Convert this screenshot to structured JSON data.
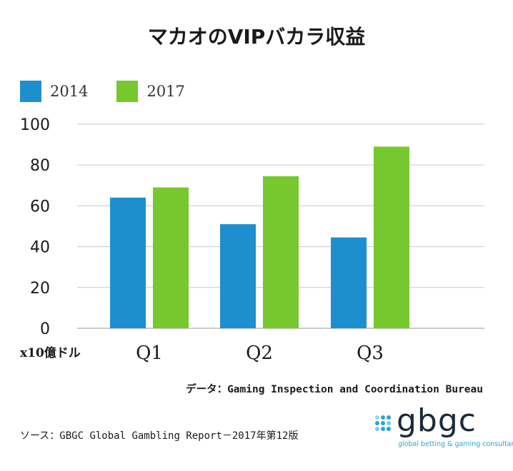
{
  "chart_data": {
    "type": "bar",
    "title": "マカオのVIPバカラ収益",
    "ylabel": "x10億ドル",
    "xlabel": "",
    "categories": [
      "Q1",
      "Q2",
      "Q3"
    ],
    "ylim": [
      0,
      100
    ],
    "yticks": [
      0,
      20,
      40,
      60,
      80,
      100
    ],
    "grid": true,
    "legend_position": "top-left",
    "series": [
      {
        "name": "2014",
        "color": "#1e8fce",
        "values": [
          64,
          51,
          44.5
        ]
      },
      {
        "name": "2017",
        "color": "#76c82e",
        "values": [
          69,
          74.5,
          89
        ]
      }
    ]
  },
  "sources": {
    "data": "データ：Gaming Inspection and Coordination Bureau",
    "report": "ソース：GBGC Global Gambling Report－2017年第12版"
  },
  "logo": {
    "word": "gbgc",
    "tagline": "global betting & gaming consultants",
    "color": "#2aa3d9"
  }
}
